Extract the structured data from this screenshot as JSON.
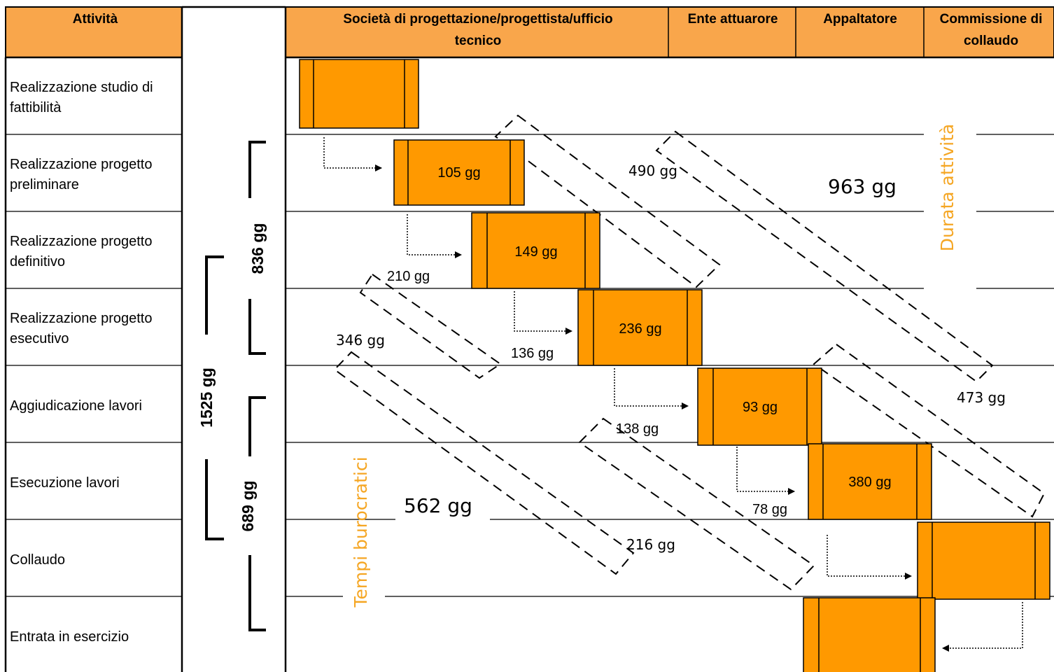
{
  "headers": {
    "activity": "Attività",
    "designer": [
      "Società di progettazione/progettista/ufficio",
      "tecnico"
    ],
    "entity": "Ente attuarore",
    "contractor": "Appaltatore",
    "commission": [
      "Commissione di",
      "collaudo"
    ]
  },
  "activities": [
    [
      "Realizzazione studio di",
      "fattibilità"
    ],
    [
      "Realizzazione progetto",
      "preliminare"
    ],
    [
      "Realizzazione progetto",
      "definitivo"
    ],
    [
      "Realizzazione progetto",
      "esecutivo"
    ],
    [
      "Aggiudicazione lavori"
    ],
    [
      "Esecuzione lavori"
    ],
    [
      "Collaudo"
    ],
    [
      "Entrata in esercizio"
    ]
  ],
  "bar_labels": [
    "105 gg",
    "149 gg",
    "236 gg",
    "93 gg",
    "380 gg"
  ],
  "gap_labels": [
    "210 gg",
    "136 gg",
    "138 gg",
    "78 gg"
  ],
  "dashed_labels": {
    "activity_group_1": "490 gg",
    "activity_total": "963 gg",
    "activity_group_2": "473 gg",
    "bureaucratic_group_1": "346 gg",
    "bureaucratic_total": "562 gg",
    "bureaucratic_group_2": "216 gg"
  },
  "side_labels": {
    "activity_duration": "Durata attività",
    "bureaucratic_time": "Tempi burocratici"
  },
  "braces": {
    "design": "836 gg",
    "execution": "689 gg",
    "total": "1525 gg"
  },
  "colors": {
    "bar": "#ff9900",
    "header": "#f9a64b",
    "accent_text": "#f5a623"
  }
}
